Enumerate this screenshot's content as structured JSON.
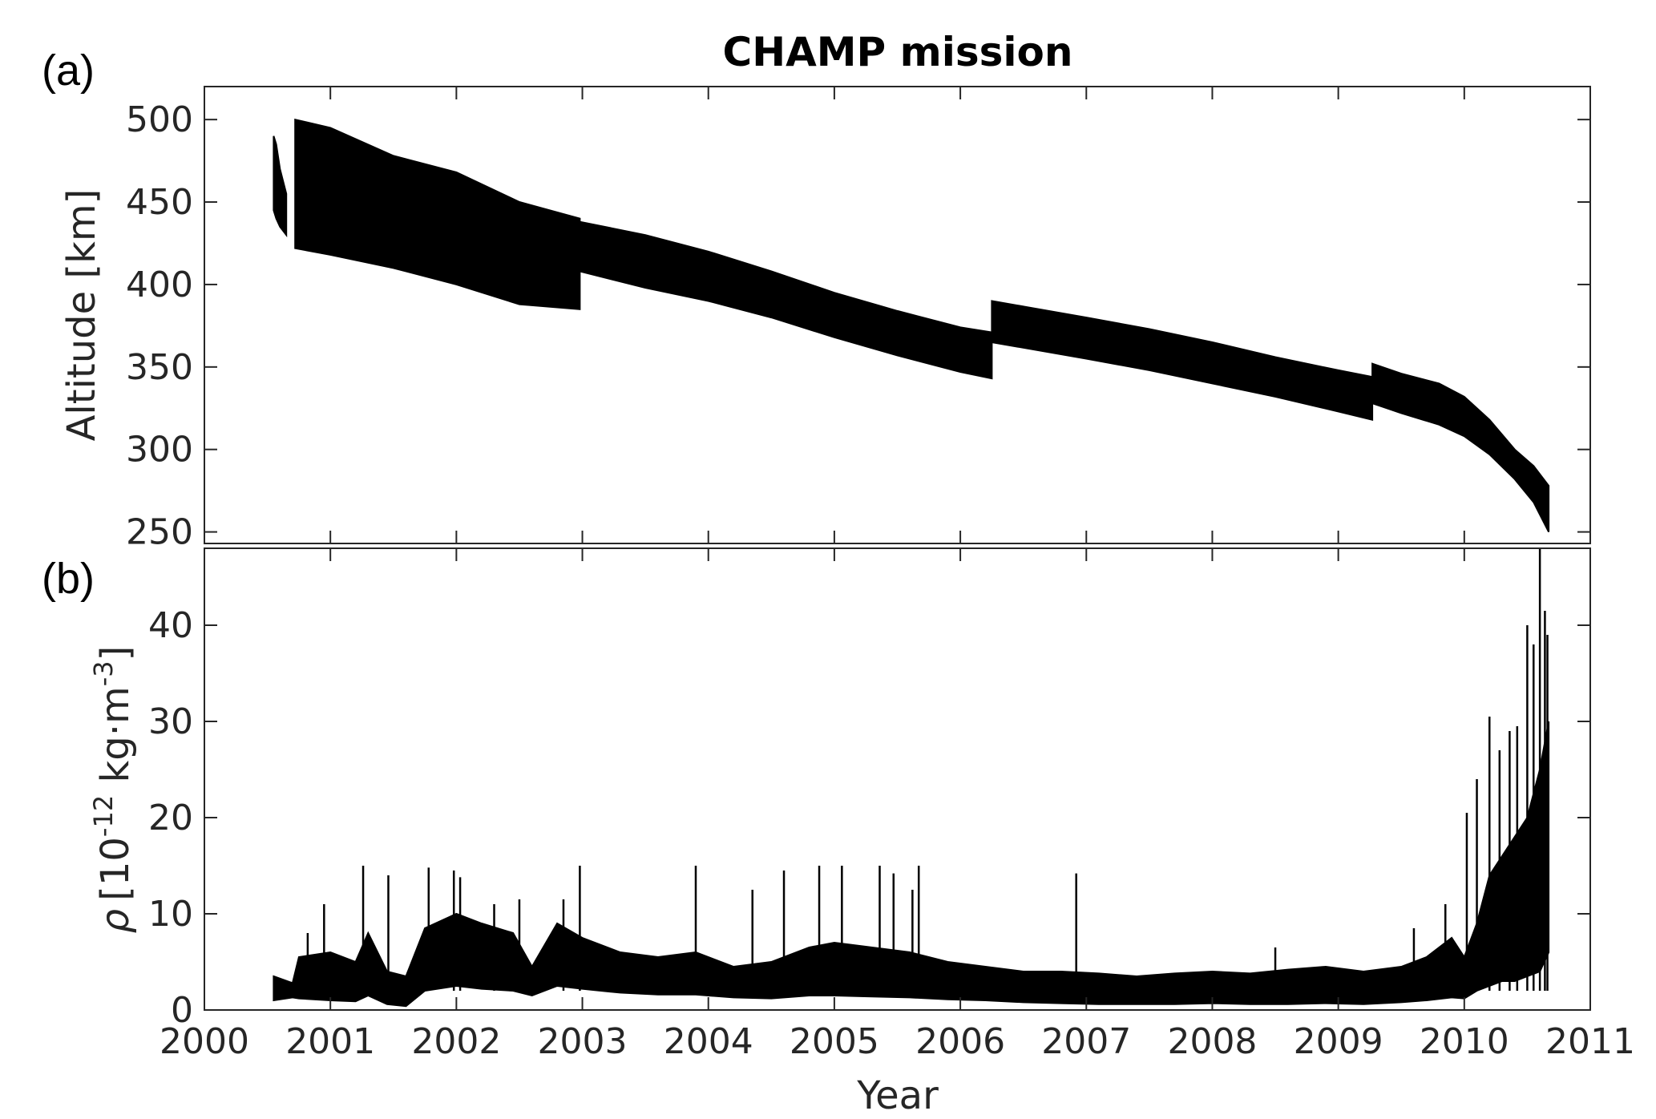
{
  "chart_data": [
    {
      "panel": "(a)",
      "type": "area",
      "title": "CHAMP mission",
      "xlabel": "",
      "ylabel": "Altitude [km]",
      "xlim": [
        2000,
        2011
      ],
      "ylim": [
        243,
        520
      ],
      "yticks": [
        "500",
        "450",
        "400",
        "350",
        "300",
        "250"
      ],
      "grid": false,
      "color": "#000000",
      "segments": [
        {
          "x": [
            2000.55,
            2000.57,
            2000.6,
            2000.65
          ],
          "upper": [
            490,
            485,
            470,
            455
          ],
          "lower": [
            445,
            440,
            435,
            430
          ]
        },
        {
          "x": [
            2000.72,
            2001.0,
            2001.5,
            2002.0,
            2002.5,
            2002.98
          ],
          "upper": [
            500,
            495,
            478,
            468,
            450,
            440
          ],
          "lower": [
            422,
            418,
            410,
            400,
            388,
            385
          ]
        },
        {
          "x": [
            2002.98,
            2003.5,
            2004.0,
            2004.5,
            2005.0,
            2005.5,
            2006.0,
            2006.25
          ],
          "upper": [
            438,
            430,
            420,
            408,
            395,
            384,
            374,
            371
          ],
          "lower": [
            408,
            398,
            390,
            380,
            368,
            357,
            347,
            343
          ]
        },
        {
          "x": [
            2006.25,
            2007.0,
            2007.5,
            2008.0,
            2008.5,
            2009.0,
            2009.27
          ],
          "upper": [
            390,
            380,
            373,
            365,
            356,
            348,
            344
          ],
          "lower": [
            365,
            355,
            348,
            340,
            332,
            323,
            318
          ]
        },
        {
          "x": [
            2009.27,
            2009.5,
            2009.8,
            2010.0,
            2010.2,
            2010.4,
            2010.55,
            2010.67
          ],
          "upper": [
            352,
            346,
            340,
            332,
            318,
            300,
            290,
            278
          ],
          "lower": [
            328,
            322,
            315,
            308,
            297,
            282,
            268,
            250
          ]
        }
      ]
    },
    {
      "panel": "(b)",
      "type": "line",
      "title": "",
      "xlabel": "Year",
      "ylabel_symbol": "ρ",
      "ylabel": "[10",
      "ylabel_exp1": "-12",
      "ylabel_unit": " kg·m",
      "ylabel_exp2": "-3",
      "ylabel_end": "]",
      "xlim": [
        2000,
        2011
      ],
      "ylim": [
        0,
        48
      ],
      "xticks": [
        "2000",
        "2001",
        "2002",
        "2003",
        "2004",
        "2005",
        "2006",
        "2007",
        "2008",
        "2009",
        "2010",
        "2011"
      ],
      "yticks": [
        "0",
        "10",
        "20",
        "30",
        "40"
      ],
      "grid": false,
      "color": "#000000",
      "envelope": {
        "x": [
          2000.55,
          2000.7,
          2000.75,
          2001.0,
          2001.2,
          2001.3,
          2001.45,
          2001.6,
          2001.75,
          2002.0,
          2002.2,
          2002.45,
          2002.6,
          2002.8,
          2003.0,
          2003.3,
          2003.6,
          2003.9,
          2004.2,
          2004.5,
          2004.8,
          2005.0,
          2005.3,
          2005.6,
          2005.9,
          2006.2,
          2006.5,
          2006.8,
          2007.1,
          2007.4,
          2007.7,
          2008.0,
          2008.3,
          2008.6,
          2008.9,
          2009.2,
          2009.5,
          2009.7,
          2009.9,
          2010.0,
          2010.1,
          2010.2,
          2010.3,
          2010.4,
          2010.5,
          2010.6,
          2010.67
        ],
        "upper": [
          3.5,
          2.8,
          5.5,
          6.0,
          5.0,
          8.0,
          4.0,
          3.5,
          8.5,
          10.0,
          9.0,
          8.0,
          4.5,
          9.0,
          7.5,
          6.0,
          5.5,
          6.0,
          4.5,
          5.0,
          6.5,
          7.0,
          6.5,
          6.0,
          5.0,
          4.5,
          4.0,
          4.0,
          3.8,
          3.5,
          3.8,
          4.0,
          3.8,
          4.2,
          4.5,
          4.0,
          4.5,
          5.5,
          7.5,
          5.5,
          9.0,
          14.0,
          16.0,
          18.0,
          20.0,
          25.0,
          30.0
        ],
        "lower": [
          1.0,
          1.3,
          1.2,
          1.0,
          0.9,
          1.5,
          0.6,
          0.4,
          2.0,
          2.5,
          2.2,
          2.0,
          1.5,
          2.5,
          2.2,
          1.8,
          1.6,
          1.6,
          1.3,
          1.2,
          1.5,
          1.5,
          1.4,
          1.3,
          1.1,
          1.0,
          0.8,
          0.7,
          0.6,
          0.6,
          0.6,
          0.7,
          0.6,
          0.6,
          0.7,
          0.6,
          0.8,
          1.0,
          1.3,
          1.2,
          2.0,
          2.5,
          3.0,
          3.0,
          3.5,
          4.0,
          6.0
        ]
      },
      "spikes": [
        {
          "x": 2000.82,
          "y": 8.0
        },
        {
          "x": 2000.95,
          "y": 11.0
        },
        {
          "x": 2001.26,
          "y": 15.0
        },
        {
          "x": 2001.46,
          "y": 14.0
        },
        {
          "x": 2001.78,
          "y": 14.8
        },
        {
          "x": 2001.98,
          "y": 14.5
        },
        {
          "x": 2002.03,
          "y": 13.8
        },
        {
          "x": 2002.3,
          "y": 11.0
        },
        {
          "x": 2002.5,
          "y": 11.5
        },
        {
          "x": 2002.85,
          "y": 11.5
        },
        {
          "x": 2002.98,
          "y": 15.0
        },
        {
          "x": 2003.9,
          "y": 15.0
        },
        {
          "x": 2004.35,
          "y": 12.5
        },
        {
          "x": 2004.6,
          "y": 14.5
        },
        {
          "x": 2004.88,
          "y": 15.0
        },
        {
          "x": 2005.06,
          "y": 15.0
        },
        {
          "x": 2005.36,
          "y": 15.0
        },
        {
          "x": 2005.47,
          "y": 14.2
        },
        {
          "x": 2005.62,
          "y": 12.5
        },
        {
          "x": 2005.67,
          "y": 15.0
        },
        {
          "x": 2006.92,
          "y": 14.2
        },
        {
          "x": 2008.5,
          "y": 6.5
        },
        {
          "x": 2009.6,
          "y": 8.5
        },
        {
          "x": 2009.85,
          "y": 11.0
        },
        {
          "x": 2010.02,
          "y": 20.5
        },
        {
          "x": 2010.1,
          "y": 24.0
        },
        {
          "x": 2010.2,
          "y": 30.5
        },
        {
          "x": 2010.28,
          "y": 27.0
        },
        {
          "x": 2010.36,
          "y": 29.0
        },
        {
          "x": 2010.42,
          "y": 29.5
        },
        {
          "x": 2010.5,
          "y": 40.0
        },
        {
          "x": 2010.55,
          "y": 38.0
        },
        {
          "x": 2010.6,
          "y": 48.0
        },
        {
          "x": 2010.64,
          "y": 41.5
        },
        {
          "x": 2010.66,
          "y": 39.0
        }
      ]
    }
  ]
}
